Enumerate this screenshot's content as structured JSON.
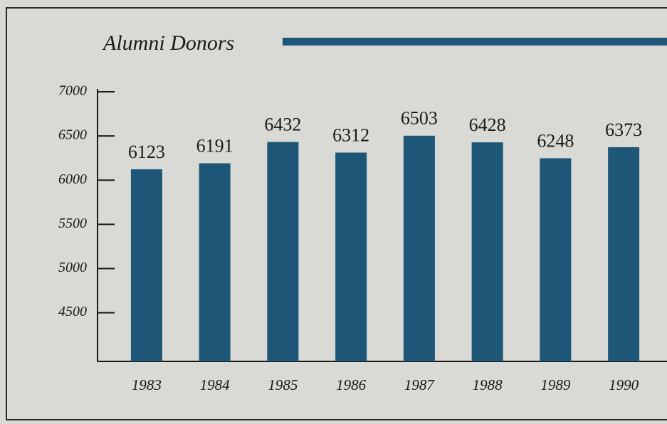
{
  "chart_data": {
    "type": "bar",
    "title": "Alumni Donors",
    "categories": [
      "1983",
      "1984",
      "1985",
      "1986",
      "1987",
      "1988",
      "1989",
      "1990"
    ],
    "values": [
      6123,
      6191,
      6432,
      6312,
      6503,
      6428,
      6248,
      6373
    ],
    "color": "#1d5676",
    "ylim": [
      3950,
      7000
    ],
    "yticks": [
      4500,
      5000,
      5500,
      6000,
      6500,
      7000
    ]
  }
}
